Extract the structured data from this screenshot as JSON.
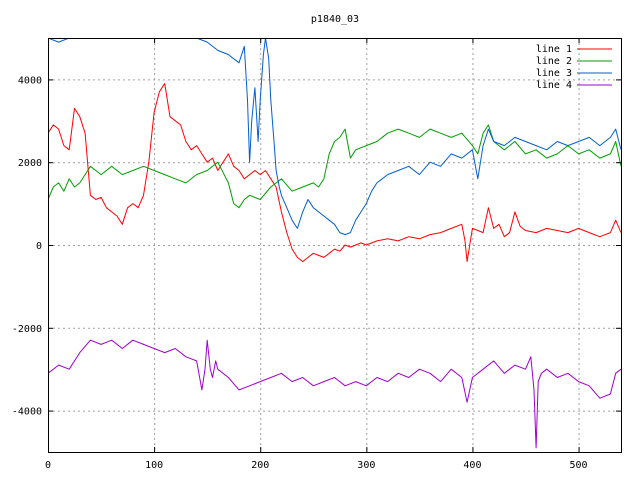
{
  "chart_data": {
    "type": "line",
    "title": "p1840_03",
    "xlabel": "",
    "ylabel": "",
    "xlim": [
      0,
      540
    ],
    "ylim": [
      -5000,
      5000
    ],
    "xticks": [
      0,
      100,
      200,
      300,
      400,
      500
    ],
    "yticks": [
      -4000,
      -2000,
      0,
      2000,
      4000
    ],
    "grid": true,
    "legend": "top-right",
    "series": [
      {
        "name": "line 1",
        "color": "#ff0000",
        "x": [
          0,
          5,
          10,
          15,
          20,
          25,
          30,
          35,
          40,
          45,
          50,
          55,
          60,
          65,
          70,
          75,
          80,
          85,
          90,
          95,
          100,
          105,
          110,
          115,
          120,
          125,
          130,
          135,
          140,
          145,
          150,
          155,
          160,
          165,
          170,
          175,
          180,
          185,
          190,
          195,
          200,
          205,
          210,
          215,
          220,
          225,
          230,
          235,
          240,
          245,
          250,
          255,
          260,
          265,
          270,
          275,
          280,
          285,
          290,
          295,
          300,
          310,
          320,
          330,
          340,
          350,
          360,
          370,
          380,
          390,
          393,
          395,
          400,
          405,
          410,
          415,
          420,
          425,
          430,
          435,
          440,
          445,
          450,
          460,
          470,
          480,
          490,
          500,
          510,
          520,
          530,
          535,
          540
        ],
        "y": [
          2700,
          2900,
          2800,
          2400,
          2300,
          3300,
          3100,
          2700,
          1200,
          1100,
          1150,
          900,
          800,
          700,
          500,
          900,
          1000,
          900,
          1200,
          2000,
          3200,
          3700,
          3900,
          3100,
          3000,
          2900,
          2500,
          2300,
          2400,
          2200,
          2000,
          2100,
          1800,
          2000,
          2200,
          1900,
          1800,
          1600,
          1700,
          1800,
          1700,
          1800,
          1600,
          1400,
          800,
          300,
          -100,
          -300,
          -400,
          -300,
          -200,
          -250,
          -300,
          -200,
          -100,
          -150,
          0,
          -50,
          0,
          50,
          0,
          100,
          150,
          100,
          200,
          150,
          250,
          300,
          400,
          500,
          100,
          -400,
          400,
          350,
          300,
          900,
          400,
          500,
          200,
          300,
          800,
          450,
          350,
          300,
          400,
          350,
          300,
          400,
          300,
          200,
          300,
          600,
          300
        ]
      },
      {
        "name": "line 2",
        "color": "#00a000",
        "x": [
          0,
          5,
          10,
          15,
          20,
          25,
          30,
          35,
          40,
          50,
          60,
          70,
          80,
          90,
          100,
          110,
          120,
          130,
          140,
          150,
          160,
          170,
          175,
          180,
          185,
          190,
          200,
          210,
          220,
          230,
          240,
          250,
          255,
          260,
          265,
          270,
          275,
          280,
          285,
          290,
          300,
          310,
          320,
          330,
          340,
          350,
          360,
          370,
          380,
          390,
          400,
          405,
          410,
          415,
          420,
          430,
          440,
          450,
          460,
          470,
          480,
          490,
          500,
          510,
          520,
          530,
          535,
          540
        ],
        "y": [
          1100,
          1400,
          1500,
          1300,
          1600,
          1400,
          1500,
          1700,
          1900,
          1700,
          1900,
          1700,
          1800,
          1900,
          1800,
          1700,
          1600,
          1500,
          1700,
          1800,
          2000,
          1500,
          1000,
          900,
          1100,
          1200,
          1100,
          1400,
          1600,
          1300,
          1400,
          1500,
          1400,
          1600,
          2200,
          2500,
          2600,
          2800,
          2100,
          2300,
          2400,
          2500,
          2700,
          2800,
          2700,
          2600,
          2800,
          2700,
          2600,
          2700,
          2400,
          2200,
          2700,
          2900,
          2500,
          2300,
          2500,
          2200,
          2300,
          2100,
          2200,
          2400,
          2200,
          2300,
          2100,
          2200,
          2500,
          1900
        ]
      },
      {
        "name": "line 3",
        "color": "#0060d0",
        "x": [
          0,
          10,
          20,
          30,
          40,
          50,
          60,
          70,
          80,
          90,
          100,
          110,
          120,
          130,
          140,
          150,
          160,
          170,
          180,
          185,
          188,
          190,
          192,
          195,
          198,
          200,
          203,
          205,
          208,
          210,
          213,
          215,
          218,
          220,
          225,
          230,
          235,
          240,
          245,
          250,
          255,
          260,
          265,
          270,
          275,
          280,
          285,
          290,
          295,
          300,
          305,
          310,
          320,
          330,
          340,
          350,
          360,
          370,
          380,
          390,
          400,
          405,
          410,
          415,
          420,
          430,
          440,
          450,
          460,
          470,
          480,
          490,
          500,
          510,
          520,
          530,
          535,
          540
        ],
        "y": [
          5000,
          4900,
          5000,
          5100,
          5000,
          5200,
          5100,
          5000,
          5100,
          5000,
          5100,
          5200,
          5000,
          5100,
          5000,
          4900,
          4700,
          4600,
          4400,
          4800,
          3500,
          2000,
          3000,
          3800,
          2500,
          3500,
          4600,
          5000,
          4500,
          3500,
          2500,
          1800,
          1400,
          1200,
          900,
          600,
          400,
          800,
          1100,
          900,
          800,
          700,
          600,
          500,
          300,
          250,
          300,
          600,
          800,
          1000,
          1300,
          1500,
          1700,
          1800,
          1900,
          1700,
          2000,
          1900,
          2200,
          2100,
          2300,
          1600,
          2400,
          2800,
          2500,
          2400,
          2600,
          2500,
          2400,
          2300,
          2500,
          2400,
          2500,
          2600,
          2400,
          2600,
          2800,
          2300
        ]
      },
      {
        "name": "line 4",
        "color": "#a000d0",
        "x": [
          0,
          10,
          20,
          30,
          40,
          50,
          60,
          70,
          80,
          90,
          100,
          110,
          120,
          130,
          140,
          145,
          148,
          150,
          153,
          155,
          158,
          160,
          170,
          180,
          190,
          200,
          210,
          220,
          230,
          240,
          250,
          260,
          270,
          280,
          290,
          300,
          310,
          320,
          330,
          340,
          350,
          360,
          370,
          380,
          390,
          395,
          400,
          410,
          420,
          430,
          440,
          450,
          455,
          458,
          460,
          462,
          465,
          470,
          480,
          490,
          500,
          510,
          520,
          530,
          535,
          540
        ],
        "y": [
          -3100,
          -2900,
          -3000,
          -2600,
          -2300,
          -2400,
          -2300,
          -2500,
          -2300,
          -2400,
          -2500,
          -2600,
          -2500,
          -2700,
          -2800,
          -3500,
          -3000,
          -2300,
          -3000,
          -3200,
          -2800,
          -3000,
          -3200,
          -3500,
          -3400,
          -3300,
          -3200,
          -3100,
          -3300,
          -3200,
          -3400,
          -3300,
          -3200,
          -3400,
          -3300,
          -3400,
          -3200,
          -3300,
          -3100,
          -3200,
          -3000,
          -3100,
          -3300,
          -3000,
          -3200,
          -3800,
          -3200,
          -3000,
          -2800,
          -3100,
          -2900,
          -3000,
          -2700,
          -3500,
          -4900,
          -3300,
          -3100,
          -3000,
          -3200,
          -3100,
          -3300,
          -3400,
          -3700,
          -3600,
          -3100,
          -3000
        ]
      }
    ]
  }
}
